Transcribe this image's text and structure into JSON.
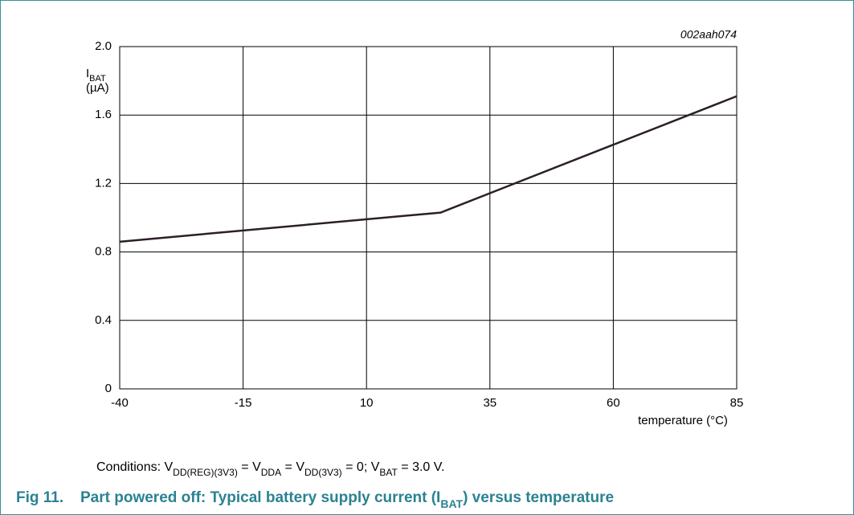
{
  "chart_data": {
    "type": "line",
    "figure_id": "002aah074",
    "y_label": [
      "I",
      "BAT",
      "(µA)"
    ],
    "x_label": "temperature (°C)",
    "conditions": [
      "Conditions: V",
      "DD(REG)(3V3)",
      " = V",
      "DDA",
      " = V",
      "DD(3V3)",
      " = 0; V",
      "BAT",
      " = 3.0 V."
    ],
    "figure_number": "Fig 11.",
    "title": [
      "Part powered off: Typical battery supply current (I",
      "BAT",
      ") versus temperature"
    ],
    "x": [
      -40,
      25,
      85
    ],
    "series": [
      {
        "color": "#2b1f2a",
        "values": [
          0.86,
          1.03,
          1.71
        ]
      }
    ],
    "xlim": [
      -40,
      85
    ],
    "xticks": [
      -40,
      -15,
      10,
      35,
      60,
      85
    ],
    "ylim": [
      0,
      2
    ],
    "yticks": [
      0,
      0.4,
      0.8,
      1.2,
      1.6,
      {
        "value": 2,
        "label": "2.0"
      }
    ],
    "grid": true
  }
}
